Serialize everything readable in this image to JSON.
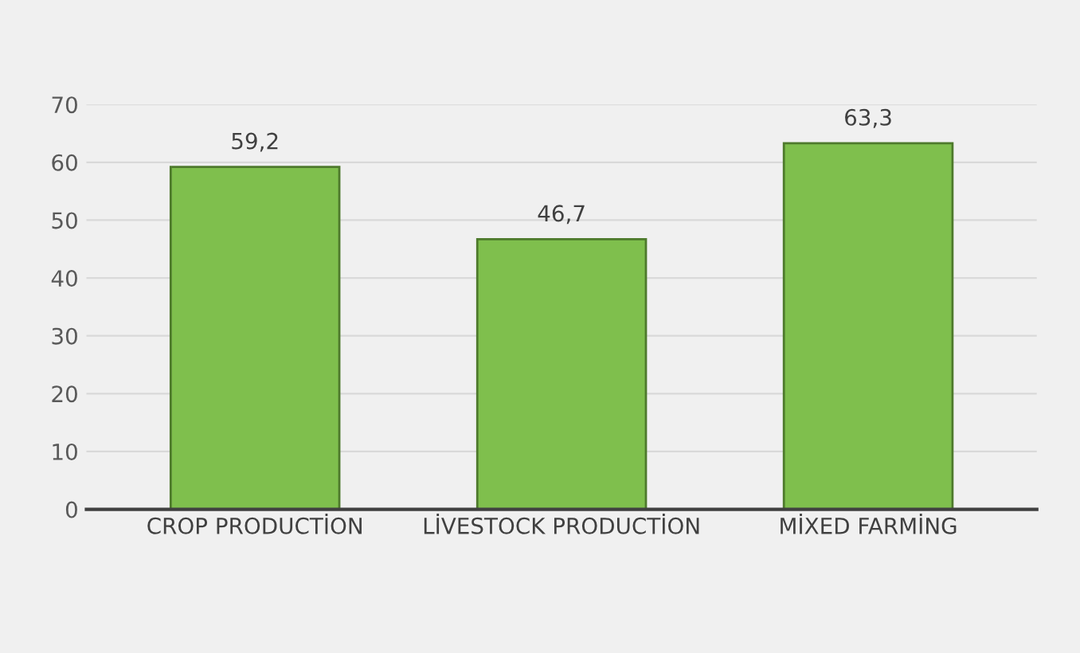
{
  "chart_data": {
    "type": "bar",
    "categories": [
      "CROP PRODUCTİON",
      "LİVESTOCK PRODUCTİON",
      "MİXED FARMİNG"
    ],
    "values": [
      59.2,
      46.7,
      63.3
    ],
    "value_labels": [
      "59,2",
      "46,7",
      "63,3"
    ],
    "color": "#7fbf4d",
    "ylim": [
      0,
      70
    ],
    "yticks": [
      0,
      10,
      20,
      30,
      40,
      50,
      60,
      70
    ],
    "grid": "y"
  }
}
